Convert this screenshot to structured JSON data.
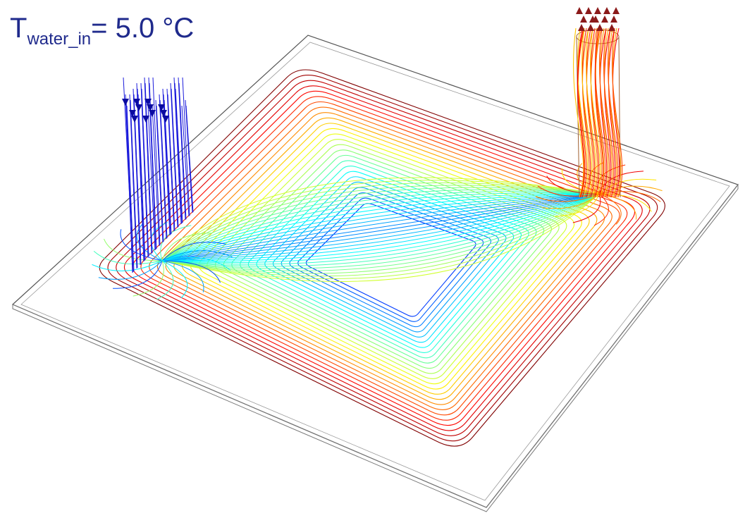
{
  "label": {
    "symbol": "T",
    "subscript": "water_in",
    "rest": "= 5.0 °C"
  }
}
